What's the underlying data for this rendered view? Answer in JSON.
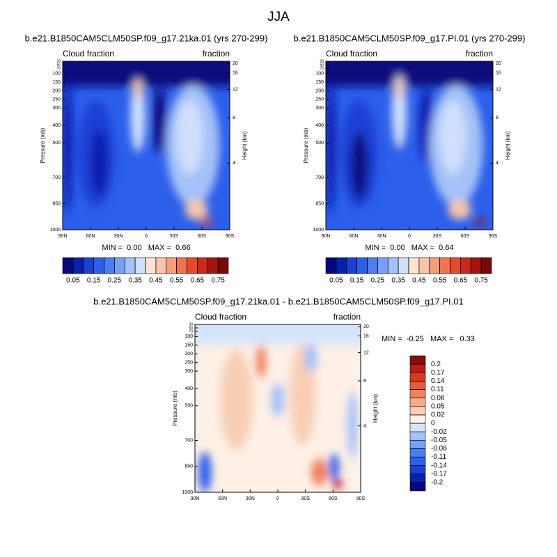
{
  "chart_data": [
    {
      "type": "contour",
      "title": "b.e21.B1850CAM5CLM50SP.f09_g17.21ka.01 (yrs 270-299)",
      "left_label": "Cloud fraction",
      "right_label": "fraction",
      "ylabel": "Pressure (mb)",
      "y2label": "Height (km)",
      "categories": [
        "90N",
        "60N",
        "30N",
        "0",
        "30S",
        "60S",
        "90S"
      ],
      "ylim": [
        1000,
        30
      ],
      "yticks": [
        30,
        50,
        70,
        100,
        150,
        200,
        250,
        300,
        400,
        500,
        700,
        850,
        1000
      ],
      "y2ticks": [
        4,
        8,
        12,
        16,
        20
      ],
      "stats": "MIN =  0.00   MAX =  0.66",
      "colorbar": {
        "orientation": "horizontal",
        "levels": [
          0.05,
          0.1,
          0.15,
          0.2,
          0.25,
          0.3,
          0.35,
          0.4,
          0.45,
          0.5,
          0.55,
          0.6,
          0.65,
          0.7,
          0.75
        ],
        "ticks": [
          0.05,
          0.15,
          0.25,
          0.35,
          0.45,
          0.55,
          0.65,
          0.75
        ],
        "colors": [
          "#07077e",
          "#0b1fae",
          "#1a40d4",
          "#2c5fea",
          "#4a7ef1",
          "#77a0f5",
          "#a5c1f8",
          "#d0dffb",
          "#fbe4d4",
          "#f8c5aa",
          "#f49e7c",
          "#ef7452",
          "#e64a2c",
          "#c82a1b",
          "#a31410",
          "#780909"
        ]
      }
    },
    {
      "type": "contour",
      "title": "b.e21.B1850CAM5CLM50SP.f09_g17.PI.01 (yrs 270-299)",
      "left_label": "Cloud fraction",
      "right_label": "fraction",
      "ylabel": "Pressure (mb)",
      "y2label": "Height (km)",
      "categories": [
        "90N",
        "60N",
        "30N",
        "0",
        "30S",
        "60S",
        "90S"
      ],
      "ylim": [
        1000,
        30
      ],
      "yticks": [
        30,
        50,
        70,
        100,
        150,
        200,
        250,
        300,
        400,
        500,
        700,
        850,
        1000
      ],
      "y2ticks": [
        4,
        8,
        12,
        16,
        20
      ],
      "stats": "MIN =  0.00   MAX =  0.64",
      "colorbar": {
        "orientation": "horizontal",
        "levels": [
          0.05,
          0.1,
          0.15,
          0.2,
          0.25,
          0.3,
          0.35,
          0.4,
          0.45,
          0.5,
          0.55,
          0.6,
          0.65,
          0.7,
          0.75
        ],
        "ticks": [
          0.05,
          0.15,
          0.25,
          0.35,
          0.45,
          0.55,
          0.65,
          0.75
        ],
        "colors": [
          "#07077e",
          "#0b1fae",
          "#1a40d4",
          "#2c5fea",
          "#4a7ef1",
          "#77a0f5",
          "#a5c1f8",
          "#d0dffb",
          "#fbe4d4",
          "#f8c5aa",
          "#f49e7c",
          "#ef7452",
          "#e64a2c",
          "#c82a1b",
          "#a31410",
          "#780909"
        ]
      }
    },
    {
      "type": "contour",
      "title": "b.e21.B1850CAM5CLM50SP.f09_g17.21ka.01 - b.e21.B1850CAM5CLM50SP.f09_g17.PI.01",
      "left_label": "Cloud fraction",
      "right_label": "fraction",
      "ylabel": "Pressure (mb)",
      "y2label": "Height (km)",
      "categories": [
        "90N",
        "60N",
        "30N",
        "0",
        "30S",
        "60S",
        "90S"
      ],
      "ylim": [
        1000,
        30
      ],
      "yticks": [
        30,
        50,
        70,
        100,
        150,
        200,
        250,
        300,
        400,
        500,
        700,
        850,
        1000
      ],
      "y2ticks": [
        4,
        8,
        12,
        16,
        20
      ],
      "stats": "MIN =  -0.25   MAX =   0.33",
      "colorbar": {
        "orientation": "vertical",
        "levels": [
          -0.2,
          -0.17,
          -0.14,
          -0.11,
          -0.08,
          -0.05,
          -0.02,
          0,
          0.02,
          0.05,
          0.08,
          0.11,
          0.14,
          0.17,
          0.2
        ],
        "ticks": [
          -0.2,
          -0.17,
          -0.14,
          -0.11,
          -0.08,
          -0.05,
          -0.02,
          0,
          0.02,
          0.05,
          0.08,
          0.11,
          0.14,
          0.17,
          0.2
        ],
        "colors": [
          "#07077e",
          "#0b1fae",
          "#1a40d4",
          "#2c5fea",
          "#4a7ef1",
          "#77a0f5",
          "#a5c1f8",
          "#d6e4fb",
          "#fdf0e6",
          "#f8cfb5",
          "#f4ab88",
          "#ef8060",
          "#e85a38",
          "#d83a20",
          "#b81e14",
          "#8a0c0c"
        ]
      }
    }
  ],
  "title": "JJA"
}
